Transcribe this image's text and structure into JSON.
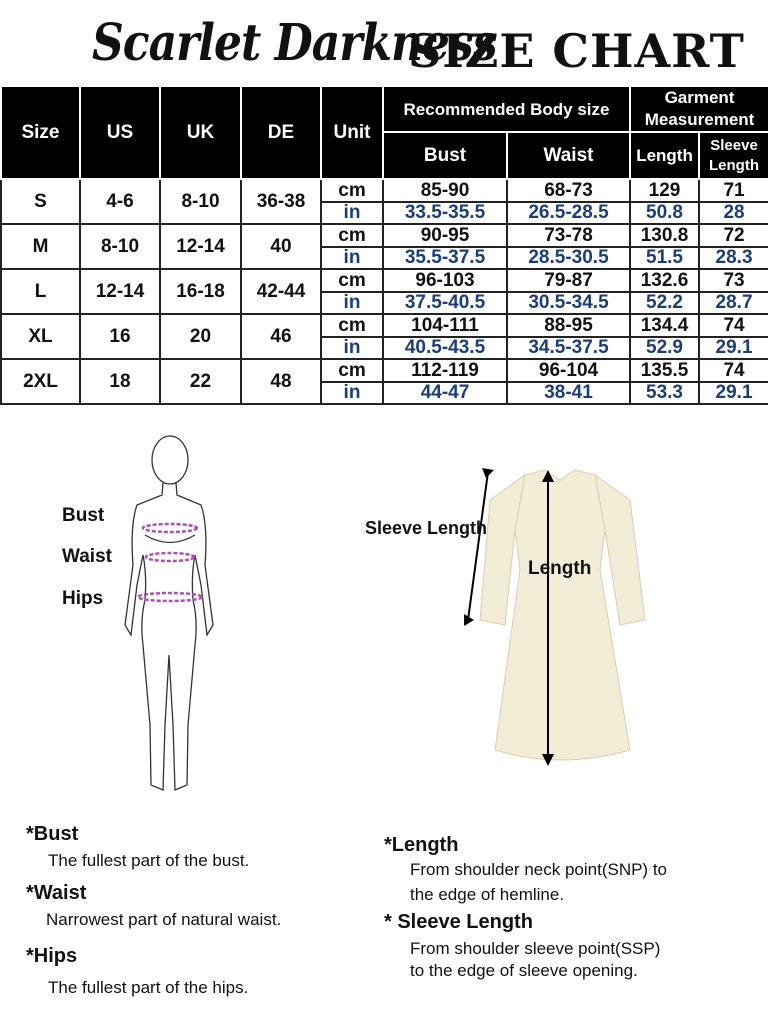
{
  "brand": "Scarlet Darkness",
  "title": "SIZE CHART",
  "headers": {
    "size": "Size",
    "us": "US",
    "uk": "UK",
    "de": "DE",
    "unit": "Unit",
    "body": "Recommended Body size",
    "garment": "Garment Measurement",
    "bust": "Bust",
    "waist": "Waist",
    "length": "Length",
    "sleeve": "Sleeve Length"
  },
  "rows": [
    {
      "size": "S",
      "us": "4-6",
      "uk": "8-10",
      "de": "36-38",
      "cm": {
        "unit": "cm",
        "bust": "85-90",
        "waist": "68-73",
        "length": "129",
        "sleeve": "71"
      },
      "in": {
        "unit": "in",
        "bust": "33.5-35.5",
        "waist": "26.5-28.5",
        "length": "50.8",
        "sleeve": "28"
      }
    },
    {
      "size": "M",
      "us": "8-10",
      "uk": "12-14",
      "de": "40",
      "cm": {
        "unit": "cm",
        "bust": "90-95",
        "waist": "73-78",
        "length": "130.8",
        "sleeve": "72"
      },
      "in": {
        "unit": "in",
        "bust": "35.5-37.5",
        "waist": "28.5-30.5",
        "length": "51.5",
        "sleeve": "28.3"
      }
    },
    {
      "size": "L",
      "us": "12-14",
      "uk": "16-18",
      "de": "42-44",
      "cm": {
        "unit": "cm",
        "bust": "96-103",
        "waist": "79-87",
        "length": "132.6",
        "sleeve": "73"
      },
      "in": {
        "unit": "in",
        "bust": "37.5-40.5",
        "waist": "30.5-34.5",
        "length": "52.2",
        "sleeve": "28.7"
      }
    },
    {
      "size": "XL",
      "us": "16",
      "uk": "20",
      "de": "46",
      "cm": {
        "unit": "cm",
        "bust": "104-111",
        "waist": "88-95",
        "length": "134.4",
        "sleeve": "74"
      },
      "in": {
        "unit": "in",
        "bust": "40.5-43.5",
        "waist": "34.5-37.5",
        "length": "52.9",
        "sleeve": "29.1"
      }
    },
    {
      "size": "2XL",
      "us": "18",
      "uk": "22",
      "de": "48",
      "cm": {
        "unit": "cm",
        "bust": "112-119",
        "waist": "96-104",
        "length": "135.5",
        "sleeve": "74"
      },
      "in": {
        "unit": "in",
        "bust": "44-47",
        "waist": "38-41",
        "length": "53.3",
        "sleeve": "29.1"
      }
    }
  ],
  "figure_labels": {
    "bust": "Bust",
    "waist": "Waist",
    "hips": "Hips",
    "sleeve": "Sleeve Length",
    "length": "Length"
  },
  "notes": {
    "bust_h": "*Bust",
    "bust_t": "The fullest part of the bust.",
    "waist_h": "*Waist",
    "waist_t": "Narrowest part of natural waist.",
    "hips_h": "*Hips",
    "hips_t": "The fullest part of the hips.",
    "length_h": "*Length",
    "length_t1": "From shoulder neck point(SNP) to",
    "length_t2": "the edge of hemline.",
    "sleeve_h": "* Sleeve Length",
    "sleeve_t1": "From shoulder sleeve point(SSP)",
    "sleeve_t2": "to the edge of sleeve opening."
  },
  "colors": {
    "in_text": "#1a3e7a",
    "measure_line": "#b04fb0",
    "dress": "#f3ecd6"
  }
}
